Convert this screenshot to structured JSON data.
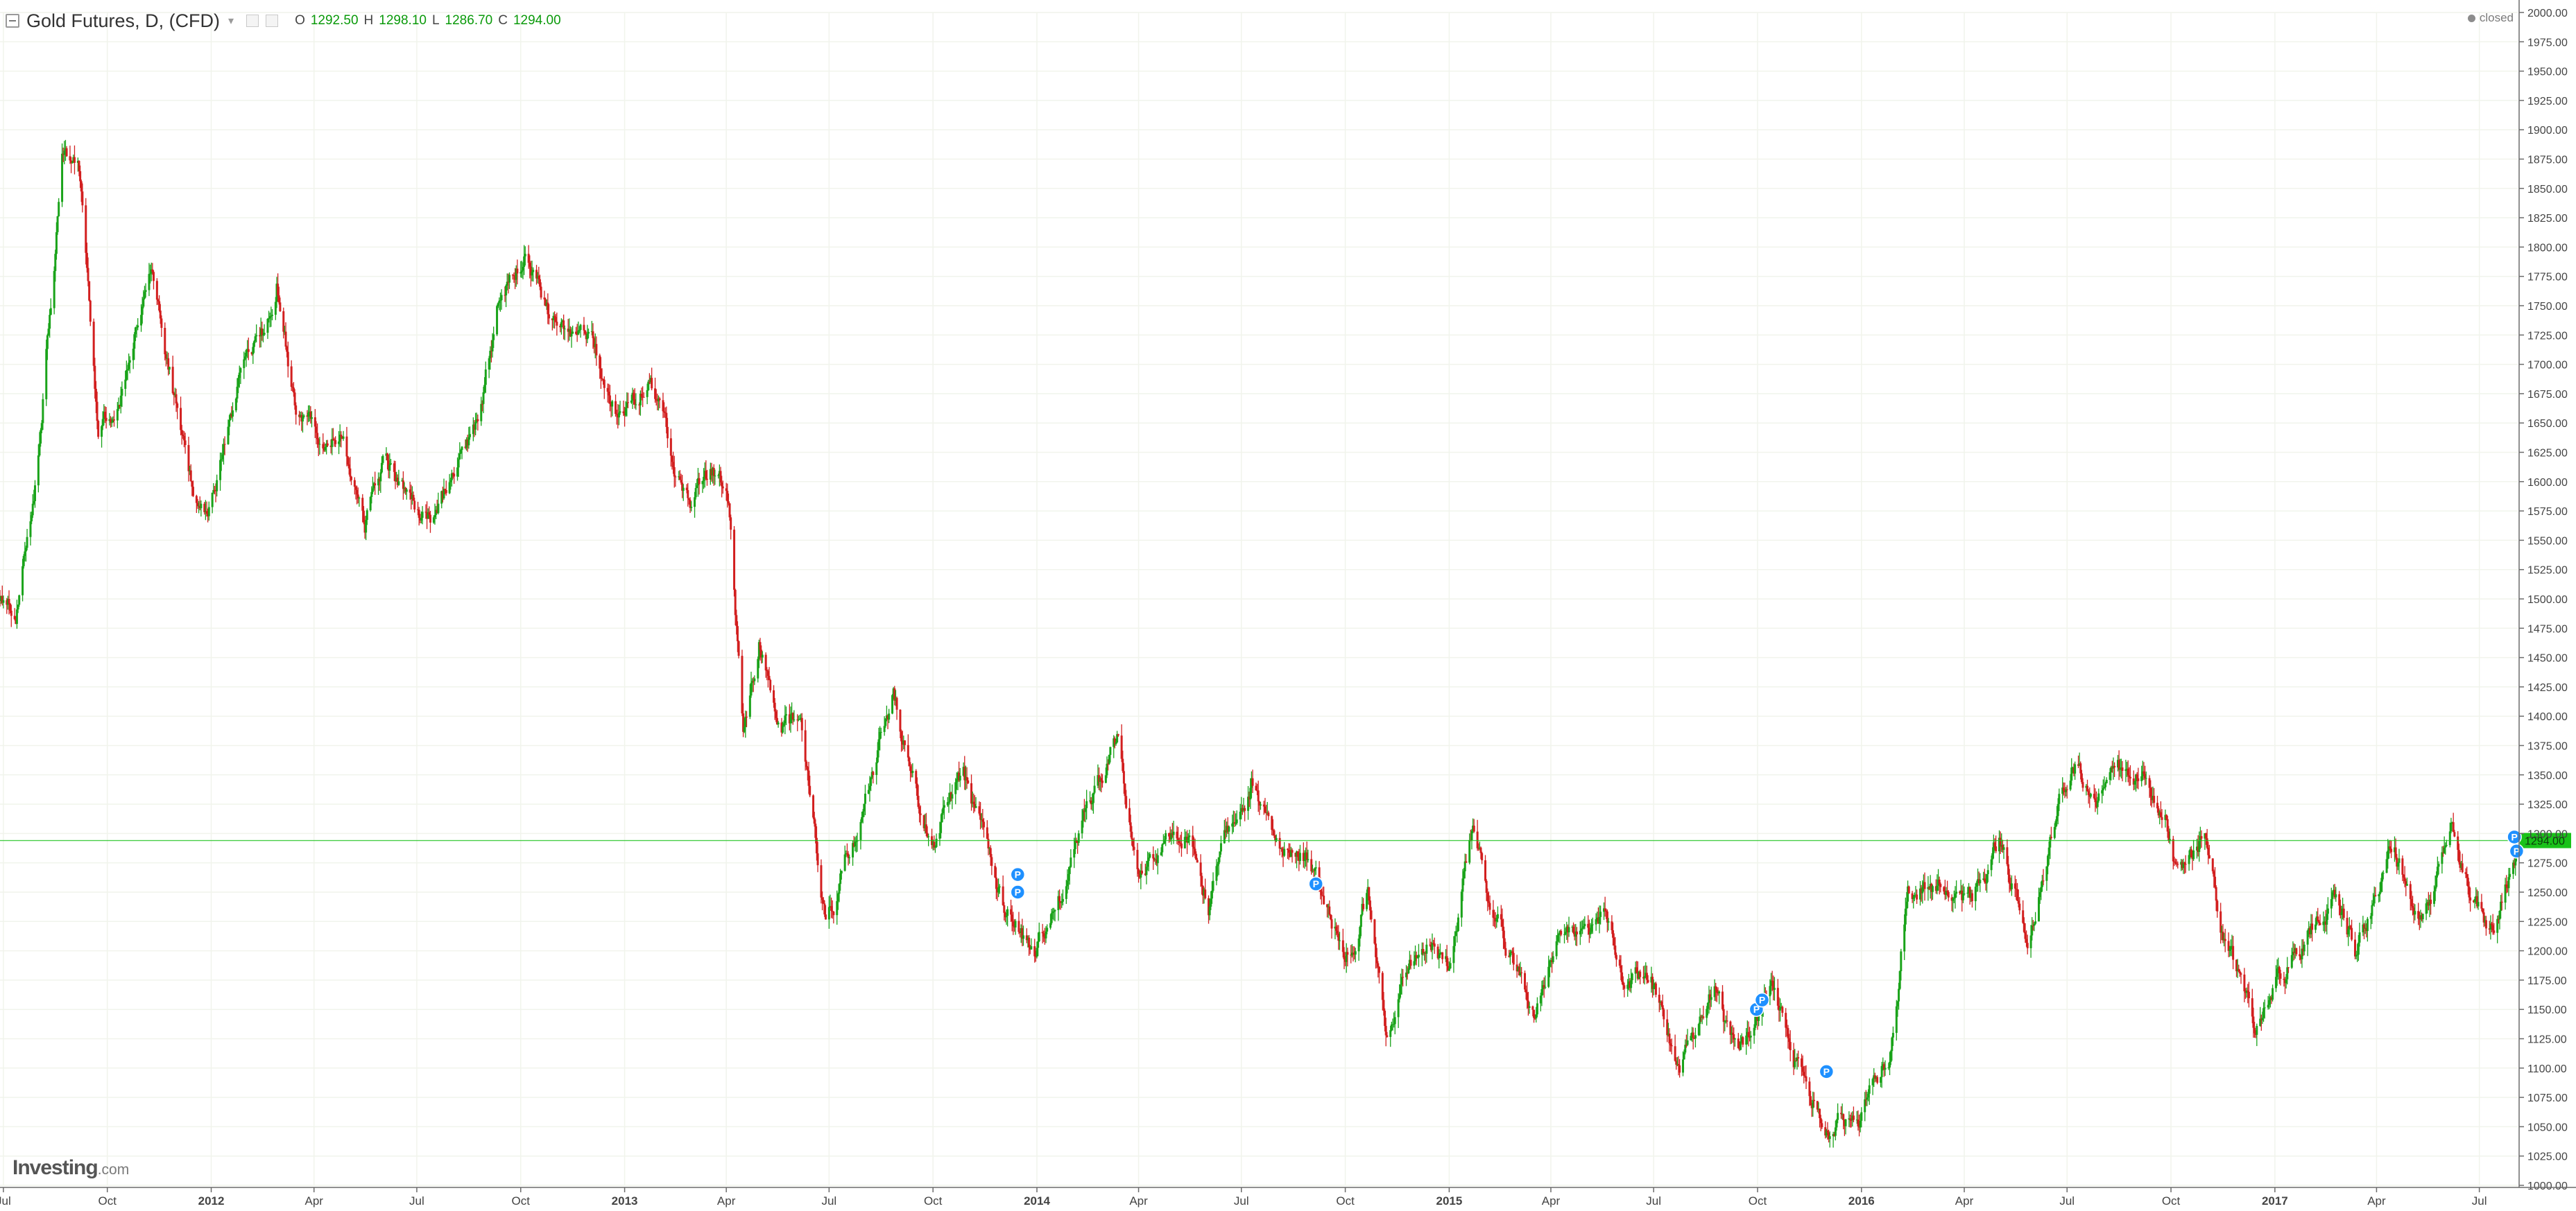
{
  "header": {
    "title": "Gold Futures, D, (CFD)",
    "ohlc": [
      {
        "key": "O",
        "value": "1292.50"
      },
      {
        "key": "H",
        "value": "1298.10"
      },
      {
        "key": "L",
        "value": "1286.70"
      },
      {
        "key": "C",
        "value": "1294.00"
      }
    ],
    "icons": [
      "collapse-icon",
      "chevron-down-icon",
      "settings-box-icon",
      "close-box-icon"
    ]
  },
  "status": {
    "label": "closed"
  },
  "watermark": {
    "brand": "Investing",
    "domain": ".com"
  },
  "colors": {
    "up": "#1aa31a",
    "down": "#d21f1f",
    "last_price": "#19c219",
    "marker": "#1e90ff",
    "grid": "#f1f4ec",
    "axis": "#6b6b6b"
  },
  "chart_data": {
    "type": "candlestick",
    "title": "",
    "xlabel": "",
    "ylabel": "",
    "ylim": [
      1000,
      2000
    ],
    "y_ticks": [
      "1000.00",
      "1025.00",
      "1050.00",
      "1075.00",
      "1100.00",
      "1125.00",
      "1150.00",
      "1175.00",
      "1200.00",
      "1225.00",
      "1250.00",
      "1275.00",
      "1300.00",
      "1325.00",
      "1350.00",
      "1375.00",
      "1400.00",
      "1425.00",
      "1450.00",
      "1475.00",
      "1500.00",
      "1525.00",
      "1550.00",
      "1575.00",
      "1600.00",
      "1625.00",
      "1650.00",
      "1675.00",
      "1700.00",
      "1725.00",
      "1750.00",
      "1775.00",
      "1800.00",
      "1825.00",
      "1850.00",
      "1875.00",
      "1900.00",
      "1925.00",
      "1950.00",
      "1975.00",
      "2000.00"
    ],
    "x_range": [
      "2011-06-28",
      "2017-08-04"
    ],
    "x_ticks": [
      {
        "label": "Jul",
        "date": "2011-07-01"
      },
      {
        "label": "Oct",
        "date": "2011-10-01"
      },
      {
        "label": "2012",
        "date": "2012-01-01"
      },
      {
        "label": "Apr",
        "date": "2012-04-01"
      },
      {
        "label": "Jul",
        "date": "2012-07-01"
      },
      {
        "label": "Oct",
        "date": "2012-10-01"
      },
      {
        "label": "2013",
        "date": "2013-01-01"
      },
      {
        "label": "Apr",
        "date": "2013-04-01"
      },
      {
        "label": "Jul",
        "date": "2013-07-01"
      },
      {
        "label": "Oct",
        "date": "2013-10-01"
      },
      {
        "label": "2014",
        "date": "2014-01-01"
      },
      {
        "label": "Apr",
        "date": "2014-04-01"
      },
      {
        "label": "Jul",
        "date": "2014-07-01"
      },
      {
        "label": "Oct",
        "date": "2014-10-01"
      },
      {
        "label": "2015",
        "date": "2015-01-01"
      },
      {
        "label": "Apr",
        "date": "2015-04-01"
      },
      {
        "label": "Jul",
        "date": "2015-07-01"
      },
      {
        "label": "Oct",
        "date": "2015-10-01"
      },
      {
        "label": "2016",
        "date": "2016-01-01"
      },
      {
        "label": "Apr",
        "date": "2016-04-01"
      },
      {
        "label": "Jul",
        "date": "2016-07-01"
      },
      {
        "label": "Oct",
        "date": "2016-10-01"
      },
      {
        "label": "2017",
        "date": "2017-01-01"
      },
      {
        "label": "Apr",
        "date": "2017-04-01"
      },
      {
        "label": "Jul",
        "date": "2017-07-01"
      }
    ],
    "price_path": [
      [
        "2011-06-28",
        1500
      ],
      [
        "2011-07-12",
        1490
      ],
      [
        "2011-08-01",
        1620
      ],
      [
        "2011-08-22",
        1880
      ],
      [
        "2011-09-06",
        1860
      ],
      [
        "2011-09-23",
        1640
      ],
      [
        "2011-10-05",
        1660
      ],
      [
        "2011-10-17",
        1690
      ],
      [
        "2011-11-08",
        1790
      ],
      [
        "2011-11-22",
        1710
      ],
      [
        "2011-12-14",
        1600
      ],
      [
        "2011-12-29",
        1560
      ],
      [
        "2012-01-12",
        1640
      ],
      [
        "2012-01-31",
        1700
      ],
      [
        "2012-02-17",
        1730
      ],
      [
        "2012-02-28",
        1780
      ],
      [
        "2012-03-15",
        1660
      ],
      [
        "2012-04-03",
        1640
      ],
      [
        "2012-04-24",
        1650
      ],
      [
        "2012-05-16",
        1560
      ],
      [
        "2012-06-01",
        1620
      ],
      [
        "2012-06-21",
        1590
      ],
      [
        "2012-07-13",
        1570
      ],
      [
        "2012-08-01",
        1600
      ],
      [
        "2012-08-22",
        1640
      ],
      [
        "2012-09-14",
        1770
      ],
      [
        "2012-10-04",
        1790
      ],
      [
        "2012-10-25",
        1740
      ],
      [
        "2012-11-15",
        1730
      ],
      [
        "2012-12-03",
        1710
      ],
      [
        "2012-12-28",
        1660
      ],
      [
        "2013-01-22",
        1690
      ],
      [
        "2013-02-15",
        1610
      ],
      [
        "2013-02-28",
        1590
      ],
      [
        "2013-03-20",
        1610
      ],
      [
        "2013-04-03",
        1580
      ],
      [
        "2013-04-16",
        1380
      ],
      [
        "2013-04-30",
        1470
      ],
      [
        "2013-05-20",
        1400
      ],
      [
        "2013-06-06",
        1390
      ],
      [
        "2013-06-27",
        1220
      ],
      [
        "2013-07-09",
        1250
      ],
      [
        "2013-07-30",
        1320
      ],
      [
        "2013-08-27",
        1420
      ],
      [
        "2013-09-10",
        1360
      ],
      [
        "2013-10-01",
        1290
      ],
      [
        "2013-10-28",
        1350
      ],
      [
        "2013-11-14",
        1290
      ],
      [
        "2013-12-05",
        1230
      ],
      [
        "2013-12-30",
        1200
      ],
      [
        "2014-01-21",
        1240
      ],
      [
        "2014-02-14",
        1320
      ],
      [
        "2014-03-14",
        1380
      ],
      [
        "2014-03-31",
        1280
      ],
      [
        "2014-04-23",
        1290
      ],
      [
        "2014-05-15",
        1300
      ],
      [
        "2014-06-02",
        1240
      ],
      [
        "2014-06-27",
        1320
      ],
      [
        "2014-07-10",
        1340
      ],
      [
        "2014-08-01",
        1290
      ],
      [
        "2014-08-29",
        1280
      ],
      [
        "2014-09-16",
        1230
      ],
      [
        "2014-10-06",
        1200
      ],
      [
        "2014-10-21",
        1250
      ],
      [
        "2014-11-06",
        1140
      ],
      [
        "2014-11-25",
        1190
      ],
      [
        "2014-12-15",
        1220
      ],
      [
        "2014-12-31",
        1190
      ],
      [
        "2015-01-22",
        1300
      ],
      [
        "2015-02-10",
        1230
      ],
      [
        "2015-03-17",
        1150
      ],
      [
        "2015-04-06",
        1210
      ],
      [
        "2015-04-28",
        1200
      ],
      [
        "2015-05-18",
        1225
      ],
      [
        "2015-06-03",
        1180
      ],
      [
        "2015-06-29",
        1175
      ],
      [
        "2015-07-24",
        1090
      ],
      [
        "2015-08-24",
        1160
      ],
      [
        "2015-09-15",
        1100
      ],
      [
        "2015-10-14",
        1180
      ],
      [
        "2015-11-10",
        1090
      ],
      [
        "2015-12-03",
        1050
      ],
      [
        "2015-12-31",
        1060
      ],
      [
        "2016-01-25",
        1110
      ],
      [
        "2016-02-11",
        1250
      ],
      [
        "2016-03-16",
        1260
      ],
      [
        "2016-04-08",
        1240
      ],
      [
        "2016-05-02",
        1300
      ],
      [
        "2016-05-27",
        1210
      ],
      [
        "2016-06-23",
        1330
      ],
      [
        "2016-07-06",
        1370
      ],
      [
        "2016-07-26",
        1330
      ],
      [
        "2016-08-18",
        1350
      ],
      [
        "2016-09-06",
        1350
      ],
      [
        "2016-09-27",
        1320
      ],
      [
        "2016-10-07",
        1260
      ],
      [
        "2016-10-31",
        1300
      ],
      [
        "2016-11-14",
        1220
      ],
      [
        "2016-12-15",
        1130
      ],
      [
        "2017-01-06",
        1180
      ],
      [
        "2017-01-26",
        1210
      ],
      [
        "2017-02-24",
        1250
      ],
      [
        "2017-03-14",
        1200
      ],
      [
        "2017-04-17",
        1290
      ],
      [
        "2017-05-09",
        1220
      ],
      [
        "2017-06-06",
        1295
      ],
      [
        "2017-06-26",
        1240
      ],
      [
        "2017-07-10",
        1210
      ],
      [
        "2017-08-04",
        1294
      ]
    ],
    "last_price": {
      "value": 1294.0,
      "label": "1294.00"
    },
    "markers": [
      {
        "date": "2013-12-15",
        "price": 1265,
        "label": "P"
      },
      {
        "date": "2013-12-15",
        "price": 1250,
        "label": "P"
      },
      {
        "date": "2014-09-05",
        "price": 1257,
        "label": "P"
      },
      {
        "date": "2015-09-30",
        "price": 1150,
        "label": "P"
      },
      {
        "date": "2015-10-05",
        "price": 1158,
        "label": "P"
      },
      {
        "date": "2015-12-01",
        "price": 1097,
        "label": "P"
      },
      {
        "date": "2017-08-01",
        "price": 1297,
        "label": "P"
      },
      {
        "date": "2017-08-03",
        "price": 1285,
        "label": "P"
      }
    ],
    "grid": true,
    "legend": "none"
  }
}
